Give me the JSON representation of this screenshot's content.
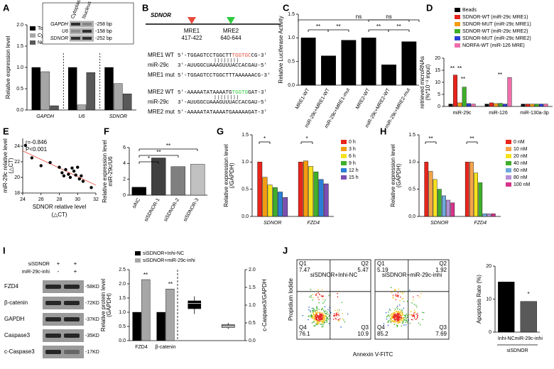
{
  "panel_labels": [
    "A",
    "B",
    "C",
    "D",
    "E",
    "F",
    "G",
    "H",
    "I",
    "J"
  ],
  "chart_data": [
    {
      "type": "bar",
      "ylabel": "Relative expression level",
      "italic_categories": true,
      "categories": [
        "GAPDH",
        "U6",
        "SDNOR"
      ],
      "series": [
        {
          "name": "Total",
          "color": "#000000",
          "values": [
            1.0,
            1.0,
            1.0
          ]
        },
        {
          "name": "Cytoplasm",
          "color": "#a6a6a6",
          "values": [
            0.9,
            0.12,
            0.62
          ]
        },
        {
          "name": "Nuclear",
          "color": "#595959",
          "values": [
            0.1,
            0.88,
            0.38
          ]
        }
      ],
      "ylim": [
        0,
        2
      ],
      "yticks": [
        {
          "value": 0,
          "label": "0.0"
        },
        {
          "value": 0.5,
          "label": "0.5"
        },
        {
          "value": 1,
          "label": "1.0"
        },
        {
          "value": 1.5,
          "label": "1.5"
        },
        {
          "value": 2,
          "label": "2.0"
        }
      ]
    },
    {
      "type": "bar",
      "ylabel": "Relative Luciferase Activity",
      "categories": [
        "MRE1-WT",
        "miR-29c+MRE1-WT",
        "miR-29c+MRE1-mut",
        "MRE2-WT",
        "miR-29c+MRE2-WT",
        "miR-29c+MRE2-mut"
      ],
      "values": [
        1.0,
        0.62,
        0.95,
        1.0,
        0.43,
        0.92
      ],
      "color": "#000000",
      "ylim": [
        0,
        1.5
      ],
      "yticks": [
        {
          "value": 0,
          "label": "0.0"
        },
        {
          "value": 0.5,
          "label": "0.5"
        },
        {
          "value": 1,
          "label": "1.0"
        },
        {
          "value": 1.5,
          "label": "1.5"
        }
      ],
      "annotations": [
        "ns",
        "**",
        "**",
        "ns",
        "**",
        "**"
      ]
    },
    {
      "type": "bar",
      "ylabel": "retrieved microRNAs",
      "ylabel2": "(%*10⁻³ input)",
      "categories": [
        "miR-29c",
        "miR-126",
        "miR-130a-3p"
      ],
      "series": [
        {
          "name": "Beads",
          "color": "#000000",
          "values": [
            1,
            1,
            1
          ]
        },
        {
          "name": "SDNOR-WT (miR-29c MRE1)",
          "color": "#e8251c",
          "values": [
            13,
            1.5,
            1
          ]
        },
        {
          "name": "SDNOR-MUT (miR-29c MRE1)",
          "color": "#f39c12",
          "values": [
            1.5,
            1.2,
            1
          ]
        },
        {
          "name": "SDNOR-WT (miR-29c MRE2)",
          "color": "#3fae2a",
          "values": [
            8,
            1.3,
            1
          ]
        },
        {
          "name": "SDNOR-MUT (miR-29c MRE2)",
          "color": "#2c3fd6",
          "values": [
            1.2,
            1,
            1
          ]
        },
        {
          "name": "NORFA-WT (miR-126 MRE)",
          "color": "#f06eaa",
          "values": [
            1,
            12,
            1
          ]
        }
      ],
      "ylim": [
        0,
        20
      ],
      "yticks": [
        0,
        5,
        10,
        15,
        20
      ],
      "annotations": [
        "**",
        "**",
        "**",
        "**"
      ]
    },
    {
      "type": "scatter",
      "xlabel": "SDNOR relative level",
      "xlabel2": "(△CT)",
      "ylabel": "miR-29c relative level",
      "ylabel2": "(△CT)",
      "x": [
        24.3,
        25,
        26,
        27,
        28,
        28.3,
        28.5,
        28.7,
        29,
        29.2,
        29.4,
        29.6,
        29.8,
        30,
        30.2,
        30.4,
        30.6,
        31.5
      ],
      "y": [
        24.1,
        22.5,
        21.5,
        21.9,
        21.3,
        20.6,
        20.2,
        21,
        20.4,
        20,
        21.2,
        20.8,
        20.3,
        21.3,
        19.8,
        20.2,
        19.5,
        18.7
      ],
      "color": "#000000",
      "fit_color": "#e74c3c",
      "xlim": [
        24,
        32
      ],
      "xticks": [
        24,
        26,
        28,
        30,
        32
      ],
      "ylim": [
        18,
        25
      ],
      "yticks": [
        18,
        20,
        22,
        24
      ],
      "annotations": [
        "r=-0.846",
        "P<0.001"
      ]
    },
    {
      "type": "bar",
      "ylabel": "Relative expression level",
      "ylabel2": "miR-29c/U6",
      "categories": [
        "siNC",
        "siSDNOR-1",
        "siSDNOR-2",
        "siSDNOR-3"
      ],
      "values": [
        1.0,
        4.7,
        3.6,
        3.9
      ],
      "colors": [
        "#000000",
        "#404040",
        "#808080",
        "#c0c0c0"
      ],
      "ylim": [
        0,
        6
      ],
      "yticks": [
        0,
        2,
        4,
        6
      ],
      "annotations": [
        "*",
        "**",
        "**"
      ]
    },
    {
      "type": "bar",
      "ylabel": "Relative expression level",
      "ylabel2": "(/GAPDH)",
      "italic_categories": true,
      "categories": [
        "SDNOR",
        "FZD4"
      ],
      "series": [
        {
          "name": "0 h",
          "color": "#e8251c",
          "values": [
            1.0,
            1.0
          ]
        },
        {
          "name": "3 h",
          "color": "#f39c12",
          "values": [
            0.72,
            1.02
          ]
        },
        {
          "name": "6 h",
          "color": "#f5e21b",
          "values": [
            0.58,
            0.92
          ]
        },
        {
          "name": "9 h",
          "color": "#3fae2a",
          "values": [
            0.53,
            0.82
          ]
        },
        {
          "name": "12 h",
          "color": "#2c7fd6",
          "values": [
            0.45,
            0.68
          ]
        },
        {
          "name": "15 h",
          "color": "#7b4fb3",
          "values": [
            0.35,
            0.6
          ]
        }
      ],
      "ylim": [
        0,
        1.5
      ],
      "yticks": [
        {
          "value": 0,
          "label": "0.0"
        },
        {
          "value": 0.5,
          "label": "0.5"
        },
        {
          "value": 1,
          "label": "1.0"
        },
        {
          "value": 1.5,
          "label": "1.5"
        }
      ],
      "annotations": [
        "*",
        "*"
      ]
    },
    {
      "type": "bar",
      "ylabel": "Relative expression level",
      "ylabel2": "(GAPDH)",
      "italic_categories": true,
      "categories": [
        "SDNOR",
        "FZD4"
      ],
      "series": [
        {
          "name": "0 nM",
          "color": "#e8251c",
          "values": [
            1.0,
            1.0
          ]
        },
        {
          "name": "10 nM",
          "color": "#f5a54a",
          "values": [
            0.83,
            1.0
          ]
        },
        {
          "name": "20 nM",
          "color": "#f5e21b",
          "values": [
            0.68,
            0.8
          ]
        },
        {
          "name": "40 nM",
          "color": "#3fae2a",
          "values": [
            0.5,
            0.62
          ]
        },
        {
          "name": "60 nM",
          "color": "#6fa8dc",
          "values": [
            0.38,
            0.05
          ]
        },
        {
          "name": "80 nM",
          "color": "#b48fd6",
          "values": [
            0.3,
            0.05
          ]
        },
        {
          "name": "100 nM",
          "color": "#d6338a",
          "values": [
            0.25,
            0.05
          ]
        }
      ],
      "ylim": [
        0,
        1.5
      ],
      "yticks": [
        {
          "value": 0,
          "label": "0.0"
        },
        {
          "value": 0.5,
          "label": "0.5"
        },
        {
          "value": 1,
          "label": "1.0"
        },
        {
          "value": 1.5,
          "label": "1.5"
        }
      ],
      "annotations": [
        "**",
        "**"
      ]
    },
    {
      "type": "bar",
      "ylabel": "Relative protein level",
      "ylabel2": "(GAPDH)",
      "categories": [
        "FZD4",
        "β-catenin"
      ],
      "series": [
        {
          "name": "siSDNOR+Inhi-NC",
          "color": "#000000",
          "values": [
            1.0,
            1.0
          ]
        },
        {
          "name": "siSDNOR+miR-29c-inhi",
          "color": "#a6a6a6",
          "values": [
            2.15,
            1.82
          ]
        }
      ],
      "ylim": [
        0,
        2.5
      ],
      "yticks": [
        {
          "value": 0,
          "label": "0.0"
        },
        {
          "value": 0.5,
          "label": "0.5"
        },
        {
          "value": 1,
          "label": "1.0"
        },
        {
          "value": 1.5,
          "label": "1.5"
        },
        {
          "value": 2,
          "label": "2.0"
        },
        {
          "value": 2.5,
          "label": "2.5"
        }
      ],
      "annotations": [
        "**",
        "**"
      ]
    },
    {
      "type": "box",
      "y2label": "c-Caspase3/GAPDH",
      "boxes": [
        {
          "min": 0.75,
          "q1": 0.9,
          "median": 1.05,
          "q3": 1.12,
          "max": 1.25,
          "color": "#000000"
        },
        {
          "min": 0.33,
          "q1": 0.37,
          "median": 0.42,
          "q3": 0.45,
          "max": 0.5,
          "color": "#d9d9d9"
        }
      ],
      "y2lim": [
        0,
        2
      ],
      "y2ticks": [
        {
          "value": 0,
          "label": "0.0"
        },
        {
          "value": 0.5,
          "label": "0.5"
        },
        {
          "value": 1,
          "label": "1.0"
        },
        {
          "value": 1.5,
          "label": "1.5"
        },
        {
          "value": 2,
          "label": "2.0"
        }
      ]
    },
    {
      "type": "bar",
      "ylabel": "Apoptosis Rate (%)",
      "group_label": "siSDNOR",
      "categories": [
        "Inhi-NC",
        "miR-29c-inhi"
      ],
      "values": [
        15.2,
        9.3
      ],
      "colors": [
        "#000000",
        "#595959"
      ],
      "ylim": [
        0,
        20
      ],
      "yticks": [
        0,
        10,
        20
      ],
      "annotations": [
        "*"
      ]
    }
  ],
  "blot_a": {
    "columns": [
      "Cytoplasm",
      "Nucleus"
    ],
    "rows": [
      "GAPDH",
      "U6",
      "SDNOR"
    ],
    "sizes": [
      "-258 bp",
      "-158 bp",
      "-252 bp"
    ]
  },
  "diagram_b": {
    "gene": "SDNOR",
    "sites": [
      {
        "name": "MRE1",
        "range": "417-422",
        "color": "#e74c3c"
      },
      {
        "name": "MRE2",
        "range": "640-644",
        "color": "#2ecc40"
      }
    ],
    "alignments": [
      {
        "label": "MRE1 WT",
        "parts": [
          "5'-TGGAGTCCTGGCTT",
          "TGGTGC",
          "CG-3'"
        ]
      },
      {
        "label": "miR-29c",
        "parts": [
          "3'-AUUGGCUAAAGUUUACCACGAU-5'"
        ]
      },
      {
        "label": "MRE1 mut",
        "parts": [
          "5'-TGGAGTCCTGGCTTTAAAAAACG-3'"
        ]
      },
      {
        "label": "MRE2 WT",
        "parts": [
          "5'-AAAAATATAAAATG",
          "TGGTG",
          "GAT-3'"
        ]
      },
      {
        "label": "miR-29c",
        "parts": [
          "3'-AUUGGCUAAAGUUUACCACGAU-5'"
        ]
      },
      {
        "label": "MRE2 mut",
        "parts": [
          "5'-AAAAATATAAAATGAAAAAGAT-3'"
        ]
      }
    ]
  },
  "blot_i": {
    "treatments": [
      {
        "name": "siSDNOR",
        "marks": [
          "+",
          "+"
        ]
      },
      {
        "name": "miR-29c-inhi",
        "marks": [
          "-",
          "+"
        ]
      }
    ],
    "bands": [
      {
        "name": "FZD4",
        "size": "-58KD"
      },
      {
        "name": "β-catenin",
        "size": "-72KD"
      },
      {
        "name": "GAPDH",
        "size": "-37KD"
      },
      {
        "name": "Caspase3",
        "size": "-35KD"
      },
      {
        "name": "c-Caspase3",
        "size": "-17KD"
      }
    ]
  },
  "flow_j": {
    "ylabel": "Propidium Iodide",
    "xlabel": "Annexin V-FITC",
    "plots": [
      {
        "title": "siSDNOR+Inhi-NC",
        "quadrants": [
          {
            "name": "Q1",
            "value": 7.47
          },
          {
            "name": "Q2",
            "value": 5.47
          },
          {
            "name": "Q4",
            "value": 76.1
          },
          {
            "name": "Q3",
            "value": 10.9
          }
        ]
      },
      {
        "title": "siSDNOR+miR-29c-inhi",
        "quadrants": [
          {
            "name": "Q1",
            "value": 5.19
          },
          {
            "name": "Q2",
            "value": 1.92
          },
          {
            "name": "Q4",
            "value": 85.2
          },
          {
            "name": "Q3",
            "value": 7.69
          }
        ]
      }
    ]
  }
}
